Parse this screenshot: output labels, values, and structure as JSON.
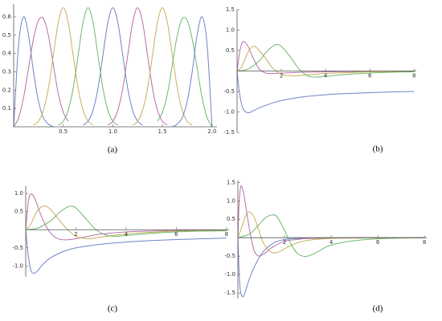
{
  "chart_data": [
    {
      "type": "line",
      "caption": "(a)",
      "xlim": [
        0,
        2.05
      ],
      "ylim": [
        0,
        0.67
      ],
      "xticks": [
        0.5,
        {
          "value": 1,
          "label": "1.0"
        },
        1.5,
        {
          "value": 2,
          "label": "2.0"
        }
      ],
      "yticks": [
        0.1,
        0.2,
        0.3,
        0.4,
        0.5,
        0.6
      ],
      "series": [
        {
          "color": "#6e84c4",
          "x": [
            0,
            0.05,
            0.1,
            0.15,
            0.2,
            0.25,
            0.3,
            0.35,
            0.4
          ],
          "values": [
            0,
            0.45,
            0.6,
            0.5,
            0.3,
            0.14,
            0.05,
            0.015,
            0
          ]
        },
        {
          "color": "#b66fa8",
          "x": [
            0,
            0.05,
            0.1,
            0.15,
            0.2,
            0.25,
            0.3,
            0.35,
            0.4,
            0.45,
            0.5,
            0.55
          ],
          "values": [
            0,
            0.05,
            0.16,
            0.32,
            0.48,
            0.58,
            0.59,
            0.5,
            0.34,
            0.18,
            0.08,
            0.03
          ]
        },
        {
          "color": "#c9b05a",
          "x": [
            0.2,
            0.25,
            0.3,
            0.35,
            0.4,
            0.45,
            0.5,
            0.55,
            0.6,
            0.65,
            0.7,
            0.75,
            0.8
          ],
          "values": [
            0.01,
            0.03,
            0.09,
            0.21,
            0.39,
            0.57,
            0.65,
            0.57,
            0.39,
            0.21,
            0.09,
            0.03,
            0.01
          ]
        },
        {
          "color": "#6db96b",
          "x": [
            0.45,
            0.5,
            0.55,
            0.6,
            0.65,
            0.7,
            0.75,
            0.8,
            0.85,
            0.9,
            0.95,
            1,
            1.05
          ],
          "values": [
            0.01,
            0.03,
            0.09,
            0.21,
            0.39,
            0.57,
            0.65,
            0.57,
            0.39,
            0.21,
            0.09,
            0.03,
            0.01
          ]
        },
        {
          "color": "#6e84c4",
          "x": [
            0.7,
            0.75,
            0.8,
            0.85,
            0.9,
            0.95,
            1,
            1.05,
            1.1,
            1.15,
            1.2,
            1.25,
            1.3
          ],
          "values": [
            0.01,
            0.03,
            0.09,
            0.21,
            0.39,
            0.57,
            0.65,
            0.57,
            0.39,
            0.21,
            0.09,
            0.03,
            0.01
          ]
        },
        {
          "color": "#b66fa8",
          "x": [
            0.95,
            1,
            1.05,
            1.1,
            1.15,
            1.2,
            1.25,
            1.3,
            1.35,
            1.4,
            1.45,
            1.5,
            1.55
          ],
          "values": [
            0.01,
            0.03,
            0.09,
            0.21,
            0.39,
            0.57,
            0.65,
            0.57,
            0.39,
            0.21,
            0.09,
            0.03,
            0.01
          ]
        },
        {
          "color": "#c9b05a",
          "x": [
            1.2,
            1.25,
            1.3,
            1.35,
            1.4,
            1.45,
            1.5,
            1.55,
            1.6,
            1.65,
            1.7,
            1.75,
            1.8
          ],
          "values": [
            0.01,
            0.03,
            0.09,
            0.21,
            0.39,
            0.57,
            0.65,
            0.57,
            0.39,
            0.21,
            0.09,
            0.03,
            0.01
          ]
        },
        {
          "color": "#6db96b",
          "x": [
            1.45,
            1.5,
            1.55,
            1.6,
            1.65,
            1.7,
            1.75,
            1.8,
            1.85,
            1.9,
            1.95,
            2
          ],
          "values": [
            0.03,
            0.08,
            0.18,
            0.34,
            0.5,
            0.59,
            0.58,
            0.48,
            0.32,
            0.16,
            0.05,
            0
          ]
        },
        {
          "color": "#6e84c4",
          "x": [
            1.6,
            1.65,
            1.7,
            1.75,
            1.8,
            1.85,
            1.9,
            1.95,
            2
          ],
          "values": [
            0,
            0.015,
            0.05,
            0.14,
            0.3,
            0.5,
            0.6,
            0.45,
            0
          ]
        }
      ]
    },
    {
      "type": "line",
      "caption": "(b)",
      "xlim": [
        0,
        8.1
      ],
      "ylim": [
        -1.5,
        1.5
      ],
      "xticks": [
        2,
        4,
        6,
        8
      ],
      "yticks": [
        -1.5,
        {
          "value": -1,
          "label": "-1.0"
        },
        -0.5,
        0.5,
        {
          "value": 1,
          "label": "1.0"
        },
        1.5
      ],
      "series": [
        {
          "color": "#6e84c4",
          "x": [
            0,
            0.1,
            0.2,
            0.3,
            0.5,
            0.7,
            1,
            1.5,
            2,
            3,
            4,
            5,
            6,
            7,
            8
          ],
          "values": [
            0,
            -0.5,
            -0.8,
            -0.95,
            -1.02,
            -0.98,
            -0.9,
            -0.8,
            -0.72,
            -0.63,
            -0.58,
            -0.55,
            -0.53,
            -0.51,
            -0.5
          ]
        },
        {
          "color": "#b66fa8",
          "x": [
            0,
            0.1,
            0.2,
            0.3,
            0.5,
            0.7,
            1,
            1.3,
            1.6,
            2,
            3,
            4,
            6,
            8
          ],
          "values": [
            0,
            0.4,
            0.65,
            0.72,
            0.6,
            0.35,
            0.05,
            -0.05,
            -0.06,
            -0.05,
            -0.03,
            -0.02,
            -0.01,
            0
          ]
        },
        {
          "color": "#c9b05a",
          "x": [
            0,
            0.2,
            0.4,
            0.6,
            0.8,
            1,
            1.3,
            1.6,
            2,
            2.5,
            3,
            4,
            5,
            6,
            8
          ],
          "values": [
            0,
            0.1,
            0.35,
            0.55,
            0.6,
            0.5,
            0.3,
            0.08,
            -0.08,
            -0.12,
            -0.1,
            -0.06,
            -0.04,
            -0.02,
            -0.01
          ]
        },
        {
          "color": "#6db96b",
          "x": [
            0,
            0.5,
            1,
            1.3,
            1.6,
            1.8,
            2,
            2.4,
            2.8,
            3.2,
            3.6,
            4,
            5,
            6,
            7,
            8
          ],
          "values": [
            0,
            0.05,
            0.25,
            0.45,
            0.6,
            0.65,
            0.6,
            0.35,
            0.05,
            -0.12,
            -0.15,
            -0.13,
            -0.08,
            -0.05,
            -0.03,
            -0.02
          ]
        }
      ]
    },
    {
      "type": "line",
      "caption": "(c)",
      "xlim": [
        0,
        8.1
      ],
      "ylim": [
        -1.3,
        1.2
      ],
      "xticks": [
        2,
        4,
        6,
        8
      ],
      "yticks": [
        {
          "value": -1,
          "label": "-1.0"
        },
        -0.5,
        0.5,
        {
          "value": 1,
          "label": "1.0"
        }
      ],
      "series": [
        {
          "color": "#6e84c4",
          "x": [
            0,
            0.1,
            0.2,
            0.3,
            0.45,
            0.6,
            0.8,
            1,
            1.5,
            2,
            3,
            4,
            5,
            6,
            7,
            8
          ],
          "values": [
            0,
            -0.7,
            -1.1,
            -1.2,
            -1.15,
            -1.02,
            -0.88,
            -0.77,
            -0.6,
            -0.5,
            -0.4,
            -0.34,
            -0.3,
            -0.27,
            -0.25,
            -0.23
          ]
        },
        {
          "color": "#b66fa8",
          "x": [
            0,
            0.1,
            0.2,
            0.35,
            0.5,
            0.7,
            1,
            1.3,
            1.6,
            2,
            2.5,
            3,
            4,
            6,
            8
          ],
          "values": [
            0,
            0.75,
            0.98,
            0.88,
            0.6,
            0.25,
            -0.1,
            -0.25,
            -0.28,
            -0.25,
            -0.18,
            -0.12,
            -0.06,
            -0.02,
            -0.01
          ]
        },
        {
          "color": "#c9b05a",
          "x": [
            0,
            0.2,
            0.4,
            0.6,
            0.8,
            1,
            1.3,
            1.6,
            2,
            2.5,
            3,
            4,
            5,
            6,
            8
          ],
          "values": [
            0,
            0.15,
            0.45,
            0.62,
            0.65,
            0.55,
            0.3,
            0.05,
            -0.18,
            -0.25,
            -0.2,
            -0.12,
            -0.07,
            -0.04,
            -0.02
          ]
        },
        {
          "color": "#6db96b",
          "x": [
            0,
            0.5,
            1,
            1.3,
            1.6,
            1.8,
            2,
            2.4,
            2.8,
            3.2,
            3.6,
            4,
            5,
            6,
            7,
            8
          ],
          "values": [
            0,
            0.05,
            0.25,
            0.45,
            0.6,
            0.65,
            0.6,
            0.3,
            0,
            -0.15,
            -0.18,
            -0.16,
            -0.1,
            -0.06,
            -0.04,
            -0.03
          ]
        }
      ]
    },
    {
      "type": "line",
      "caption": "(d)",
      "xlim": [
        0,
        8.1
      ],
      "ylim": [
        -1.65,
        1.55
      ],
      "xticks": [
        2,
        4,
        6,
        8
      ],
      "yticks": [
        -1.5,
        {
          "value": -1,
          "label": "-1.0"
        },
        -0.5,
        0.5,
        {
          "value": 1,
          "label": "1.0"
        },
        1.5
      ],
      "series": [
        {
          "color": "#6e84c4",
          "x": [
            0,
            0.05,
            0.1,
            0.2,
            0.3,
            0.5,
            0.7,
            1,
            1.3,
            1.6,
            2,
            2.5,
            3,
            4,
            6,
            8
          ],
          "values": [
            0,
            -0.9,
            -1.4,
            -1.6,
            -1.5,
            -1.1,
            -0.8,
            -0.45,
            -0.25,
            -0.12,
            -0.05,
            -0.02,
            -0.01,
            0,
            0,
            0
          ]
        },
        {
          "color": "#b66fa8",
          "x": [
            0,
            0.05,
            0.1,
            0.15,
            0.25,
            0.4,
            0.55,
            0.7,
            0.9,
            1.2,
            1.5,
            2,
            2.5,
            3,
            4,
            6,
            8
          ],
          "values": [
            0,
            0.9,
            1.3,
            1.4,
            1.2,
            0.6,
            0.05,
            -0.35,
            -0.5,
            -0.4,
            -0.25,
            -0.1,
            -0.05,
            -0.02,
            -0.01,
            0,
            0
          ]
        },
        {
          "color": "#c9b05a",
          "x": [
            0,
            0.2,
            0.35,
            0.5,
            0.7,
            0.9,
            1.1,
            1.4,
            1.7,
            2,
            2.5,
            3,
            4,
            5,
            6,
            8
          ],
          "values": [
            0,
            0.35,
            0.62,
            0.7,
            0.55,
            0.2,
            -0.15,
            -0.38,
            -0.4,
            -0.3,
            -0.15,
            -0.07,
            -0.02,
            -0.01,
            0,
            0
          ]
        },
        {
          "color": "#6db96b",
          "x": [
            0,
            0.5,
            0.9,
            1.2,
            1.5,
            1.7,
            2,
            2.3,
            2.6,
            3,
            3.5,
            4,
            5,
            6,
            7,
            8
          ],
          "values": [
            0,
            0.1,
            0.35,
            0.55,
            0.62,
            0.55,
            0.2,
            -0.2,
            -0.45,
            -0.5,
            -0.35,
            -0.2,
            -0.08,
            -0.03,
            -0.01,
            0
          ]
        }
      ]
    }
  ]
}
